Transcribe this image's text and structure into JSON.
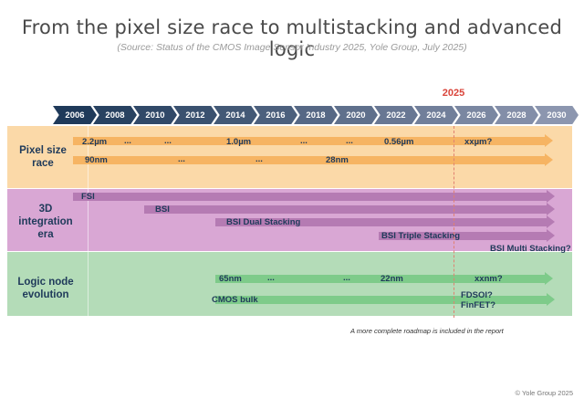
{
  "title": "From the pixel size race to multistacking and advanced logic",
  "subtitle": "(Source: Status of the CMOS Image Sensor Industry 2025, Yole Group, July 2025)",
  "highlight_year": "2025",
  "years": [
    "2006",
    "2008",
    "2010",
    "2012",
    "2014",
    "2016",
    "2018",
    "2020",
    "2022",
    "2024",
    "2026",
    "2028",
    "2030"
  ],
  "colors": {
    "pixel_band": "#fbd9a8",
    "stacking_band": "#d9a7d4",
    "logic_band": "#b4dcb8",
    "pixel_arrow": "#f6b463",
    "stacking_arrow": "#b57bb3",
    "logic_arrow": "#7ecb8a",
    "highlight": "#d9443a",
    "chevron_dark": "#1f3a5a"
  },
  "bands": {
    "pixel": {
      "label_1": "Pixel size",
      "label_2": "race",
      "row1": [
        "2.2µm",
        "...",
        "...",
        "1.0µm",
        "...",
        "...",
        "0.56µm",
        "xxµm?"
      ],
      "row2": [
        "90nm",
        "...",
        "...",
        "28nm"
      ]
    },
    "stacking": {
      "label_1": "3D",
      "label_2": "integration",
      "label_3": "era",
      "items": [
        "FSI",
        "BSI",
        "BSI Dual Stacking",
        "BSI Triple Stacking",
        "BSI Multi Stacking?"
      ]
    },
    "logic": {
      "label_1": "Logic node",
      "label_2": "evolution",
      "row1": [
        "65nm",
        "...",
        "...",
        "22nm",
        "xxnm?"
      ],
      "row2": [
        "CMOS bulk",
        "FDSOI?",
        "FinFET?"
      ]
    }
  },
  "note": "A more complete roadmap is included in the report",
  "copyright": "© Yole Group 2025"
}
